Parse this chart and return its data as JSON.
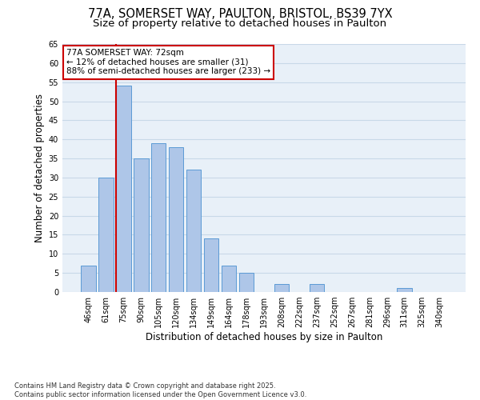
{
  "title_line1": "77A, SOMERSET WAY, PAULTON, BRISTOL, BS39 7YX",
  "title_line2": "Size of property relative to detached houses in Paulton",
  "xlabel": "Distribution of detached houses by size in Paulton",
  "ylabel": "Number of detached properties",
  "categories": [
    "46sqm",
    "61sqm",
    "75sqm",
    "90sqm",
    "105sqm",
    "120sqm",
    "134sqm",
    "149sqm",
    "164sqm",
    "178sqm",
    "193sqm",
    "208sqm",
    "222sqm",
    "237sqm",
    "252sqm",
    "267sqm",
    "281sqm",
    "296sqm",
    "311sqm",
    "325sqm",
    "340sqm"
  ],
  "values": [
    7,
    30,
    54,
    35,
    39,
    38,
    32,
    14,
    7,
    5,
    0,
    2,
    0,
    2,
    0,
    0,
    0,
    0,
    1,
    0,
    0
  ],
  "bar_color": "#aec6e8",
  "bar_edge_color": "#5b9bd5",
  "vline_color": "#cc0000",
  "annotation_text": "77A SOMERSET WAY: 72sqm\n← 12% of detached houses are smaller (31)\n88% of semi-detached houses are larger (233) →",
  "annotation_box_color": "#cc0000",
  "ylim": [
    0,
    65
  ],
  "yticks": [
    0,
    5,
    10,
    15,
    20,
    25,
    30,
    35,
    40,
    45,
    50,
    55,
    60,
    65
  ],
  "grid_color": "#c8d8e8",
  "background_color": "#e8f0f8",
  "footer_text": "Contains HM Land Registry data © Crown copyright and database right 2025.\nContains public sector information licensed under the Open Government Licence v3.0.",
  "title_fontsize": 10.5,
  "subtitle_fontsize": 9.5,
  "tick_fontsize": 7,
  "ylabel_fontsize": 8.5,
  "xlabel_fontsize": 8.5,
  "annotation_fontsize": 7.5,
  "footer_fontsize": 6
}
